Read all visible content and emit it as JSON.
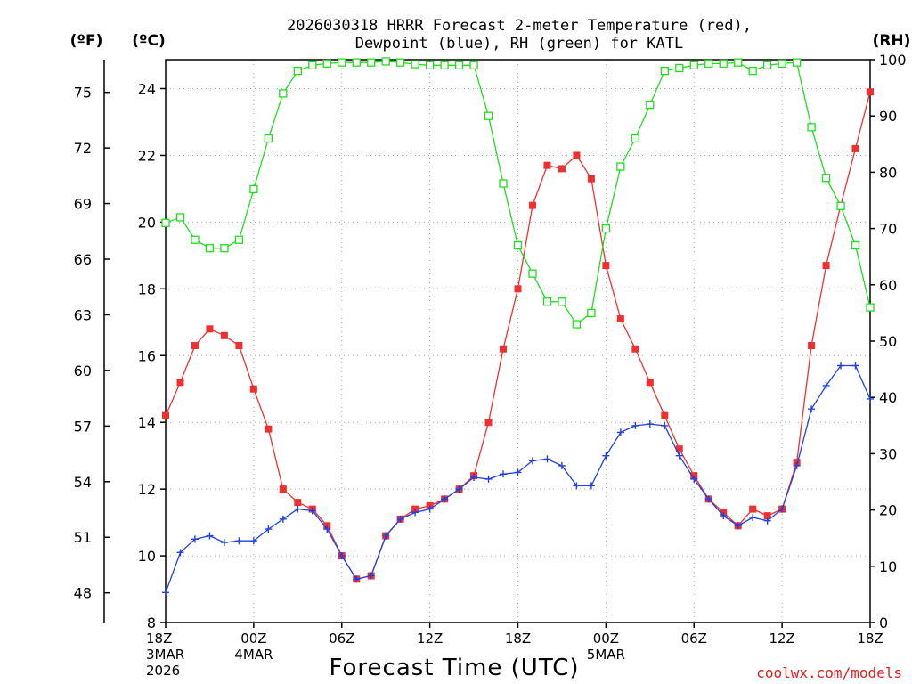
{
  "title_line1": "2026030318 HRRR Forecast 2-meter Temperature (red),",
  "title_line2": "Dewpoint (blue), RH (green) for KATL",
  "unit_f": "(ºF)",
  "unit_c": "(ºC)",
  "unit_rh": "(RH)",
  "credit": "coolwx.com/models",
  "colors": {
    "temp": "#f03030",
    "dewpoint": "#2040e0",
    "rh": "#20dd20"
  },
  "chart_data": {
    "type": "line",
    "title": "2026030318 HRRR Forecast 2-meter Temperature (red), Dewpoint (blue), RH (green) for KATL",
    "xlabel": "Forecast Time (UTC)",
    "x_hours": [
      0,
      1,
      2,
      3,
      4,
      5,
      6,
      7,
      8,
      9,
      10,
      11,
      12,
      13,
      14,
      15,
      16,
      17,
      18,
      19,
      20,
      21,
      22,
      23,
      24,
      25,
      26,
      27,
      28,
      29,
      30,
      31,
      32,
      33,
      34,
      35,
      36,
      37,
      38,
      39,
      40,
      41,
      42,
      43,
      44,
      45,
      46,
      47,
      48
    ],
    "x_ticks": [
      {
        "hour": 0,
        "lines": [
          "18Z",
          "3MAR",
          "2026"
        ]
      },
      {
        "hour": 6,
        "lines": [
          "00Z",
          "4MAR"
        ]
      },
      {
        "hour": 12,
        "lines": [
          "06Z"
        ]
      },
      {
        "hour": 18,
        "lines": [
          "12Z"
        ]
      },
      {
        "hour": 24,
        "lines": [
          "18Z"
        ]
      },
      {
        "hour": 30,
        "lines": [
          "00Z",
          "5MAR"
        ]
      },
      {
        "hour": 36,
        "lines": [
          "06Z"
        ]
      },
      {
        "hour": 42,
        "lines": [
          "12Z"
        ]
      },
      {
        "hour": 48,
        "lines": [
          "18Z"
        ]
      }
    ],
    "y_left_celsius": {
      "range": [
        8,
        24.8
      ],
      "ticks": [
        8,
        10,
        12,
        14,
        16,
        18,
        20,
        22,
        24
      ]
    },
    "y_left_fahrenheit": {
      "ticks": [
        48,
        51,
        54,
        57,
        60,
        63,
        66,
        69,
        72,
        75
      ]
    },
    "y_right_rh": {
      "range": [
        0,
        100
      ],
      "ticks": [
        0,
        10,
        20,
        30,
        40,
        50,
        60,
        70,
        80,
        90,
        100
      ]
    },
    "series": [
      {
        "name": "Temperature",
        "units": "C",
        "color": "red",
        "marker": "filled-square",
        "values": [
          14.2,
          15.2,
          16.3,
          16.8,
          16.6,
          16.3,
          15.0,
          13.8,
          12.0,
          11.6,
          11.4,
          10.9,
          10.0,
          9.3,
          9.4,
          10.6,
          11.1,
          11.4,
          11.5,
          11.7,
          12.0,
          12.4,
          14.0,
          16.2,
          18.0,
          20.5,
          21.7,
          21.6,
          22.0,
          21.3,
          18.7,
          17.1,
          16.2,
          15.2,
          14.2,
          13.2,
          12.4,
          11.7,
          11.3,
          10.9,
          11.4,
          11.2,
          11.4,
          12.8,
          16.3,
          18.7,
          20.5,
          22.2,
          23.9
        ]
      },
      {
        "name": "Dewpoint",
        "units": "C",
        "color": "blue",
        "marker": "plus",
        "values": [
          8.9,
          10.1,
          10.5,
          10.6,
          10.4,
          10.45,
          10.45,
          10.8,
          11.1,
          11.4,
          11.35,
          10.8,
          10.0,
          9.3,
          9.4,
          10.6,
          11.1,
          11.3,
          11.4,
          11.7,
          12.0,
          12.35,
          12.3,
          12.45,
          12.5,
          12.85,
          12.9,
          12.7,
          12.1,
          12.1,
          13.0,
          13.7,
          13.9,
          13.95,
          13.9,
          13.0,
          12.3,
          11.7,
          11.2,
          10.9,
          11.15,
          11.05,
          11.4,
          12.7,
          14.4,
          15.1,
          15.7,
          15.7,
          14.7
        ]
      },
      {
        "name": "Relative Humidity",
        "units": "%",
        "color": "green",
        "marker": "open-square",
        "values": [
          71,
          72,
          68,
          66.5,
          66.5,
          68,
          77,
          86,
          94,
          98,
          99,
          99.3,
          99.5,
          99.5,
          99.5,
          99.7,
          99.5,
          99.2,
          99,
          99,
          99,
          99,
          90,
          78,
          67,
          62,
          57,
          57,
          53,
          55,
          70,
          81,
          86,
          92,
          98,
          98.5,
          99,
          99.3,
          99.3,
          99.5,
          98,
          99,
          99.3,
          99.5,
          88,
          79,
          74,
          67,
          56
        ]
      }
    ]
  }
}
